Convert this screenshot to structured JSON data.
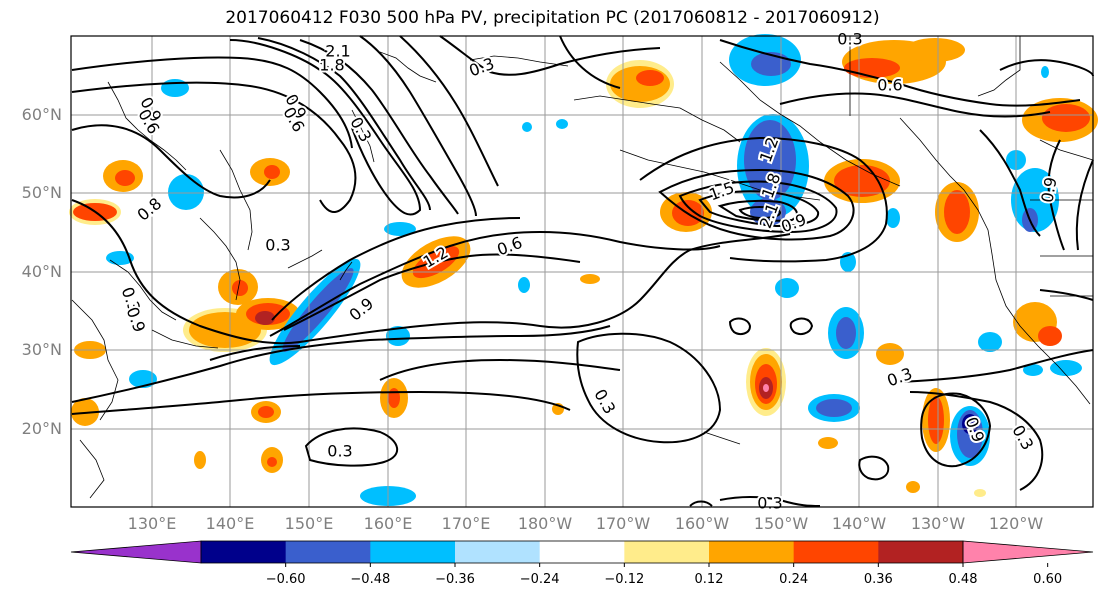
{
  "title": "2017060412 F030 500 hPa PV, precipitation PC (2017060812 - 2017060912)",
  "lat_labels": [
    "60°N",
    "50°N",
    "40°N",
    "30°N",
    "20°N"
  ],
  "lon_labels": [
    "130°E",
    "140°E",
    "150°E",
    "160°E",
    "170°E",
    "180°W",
    "170°W",
    "160°W",
    "150°W",
    "140°W",
    "130°W",
    "120°W"
  ],
  "contour_labels": [
    "2.1",
    "1.8",
    "0.3",
    "0.9",
    "0.6",
    "0.9",
    "0.6",
    "0.3",
    "0.3",
    "0.8",
    "0.3",
    "0.9",
    "1.2",
    "0.6",
    "0.9",
    "1.2",
    "1.5",
    "1.8",
    "2.1",
    "0.9",
    "0.6",
    "0.3",
    "0.3",
    "0.3",
    "0.3",
    "0.9",
    "0.9",
    "0.3",
    "0.3"
  ],
  "colorbar": {
    "colors": [
      "#9932CC",
      "#00008B",
      "#3A5FCD",
      "#00BFFF",
      "#B0E2FF",
      "#FFFFFF",
      "#FFEC8B",
      "#FFA500",
      "#FF4500",
      "#B22222",
      "#FF82AB"
    ],
    "ticks": [
      "−0.60",
      "−0.48",
      "−0.36",
      "−0.24",
      "−0.12",
      "0.12",
      "0.24",
      "0.36",
      "0.48",
      "0.60"
    ]
  }
}
